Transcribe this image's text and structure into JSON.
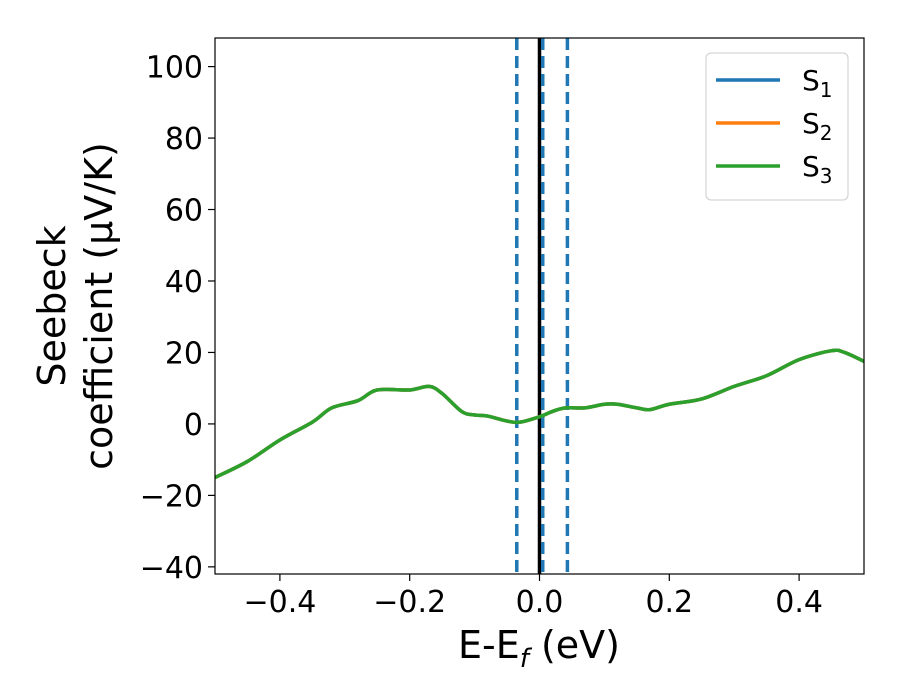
{
  "chart_data": {
    "type": "line",
    "title": "",
    "xlabel": {
      "base": "E-E",
      "sub": "f",
      "rest": " (eV)"
    },
    "ylabel": {
      "line1": "Seebeck",
      "line2": "coefficient  (μV/K)"
    },
    "xlim": [
      -0.5,
      0.5
    ],
    "ylim": [
      -42,
      108
    ],
    "xticks": [
      -0.4,
      -0.2,
      0.0,
      0.2,
      0.4
    ],
    "xtick_labels": [
      "−0.4",
      "−0.2",
      "0.0",
      "0.2",
      "0.4"
    ],
    "yticks": [
      -40,
      -20,
      0,
      20,
      40,
      60,
      80,
      100
    ],
    "ytick_labels": [
      "−40",
      "−20",
      "0",
      "20",
      "40",
      "60",
      "80",
      "100"
    ],
    "grid": false,
    "legend_position": "top-right",
    "vlines": [
      {
        "x": -0.035,
        "style": "dashed",
        "color": "#1f77b4"
      },
      {
        "x": 0.0,
        "style": "solid",
        "color": "#000000"
      },
      {
        "x": 0.005,
        "style": "dashed",
        "color": "#1f77b4"
      },
      {
        "x": 0.043,
        "style": "dashed",
        "color": "#1f77b4"
      }
    ],
    "x": [
      -0.5,
      -0.45,
      -0.4,
      -0.35,
      -0.32,
      -0.28,
      -0.25,
      -0.2,
      -0.17,
      -0.15,
      -0.12,
      -0.1,
      -0.08,
      -0.05,
      -0.03,
      0.0,
      0.02,
      0.04,
      0.07,
      0.1,
      0.12,
      0.15,
      0.17,
      0.2,
      0.25,
      0.3,
      0.35,
      0.4,
      0.45,
      0.47,
      0.5
    ],
    "series": [
      {
        "name": "S",
        "sub": "1",
        "color": "#1f77b4",
        "values": [
          -15,
          -10.5,
          -4.5,
          0.5,
          4.5,
          6.5,
          9.5,
          9.5,
          10.5,
          8.5,
          3.5,
          2.5,
          2.2,
          0.8,
          0.5,
          2.0,
          3.5,
          4.5,
          4.5,
          5.5,
          5.5,
          4.5,
          4.0,
          5.5,
          7.0,
          10.5,
          13.5,
          18.0,
          20.5,
          20.0,
          17.5
        ]
      },
      {
        "name": "S",
        "sub": "2",
        "color": "#ff7f0e",
        "values": [
          -15,
          -10.5,
          -4.5,
          0.5,
          4.5,
          6.5,
          9.5,
          9.5,
          10.5,
          8.5,
          3.5,
          2.5,
          2.2,
          0.8,
          0.5,
          2.0,
          3.5,
          4.5,
          4.5,
          5.5,
          5.5,
          4.5,
          4.0,
          5.5,
          7.0,
          10.5,
          13.5,
          18.0,
          20.5,
          20.0,
          17.5
        ]
      },
      {
        "name": "S",
        "sub": "3",
        "color": "#2ca02c",
        "values": [
          -15,
          -10.5,
          -4.5,
          0.5,
          4.5,
          6.5,
          9.5,
          9.5,
          10.5,
          8.5,
          3.5,
          2.5,
          2.2,
          0.8,
          0.5,
          2.0,
          3.5,
          4.5,
          4.5,
          5.5,
          5.5,
          4.5,
          4.0,
          5.5,
          7.0,
          10.5,
          13.5,
          18.0,
          20.5,
          20.0,
          17.5
        ]
      }
    ]
  }
}
